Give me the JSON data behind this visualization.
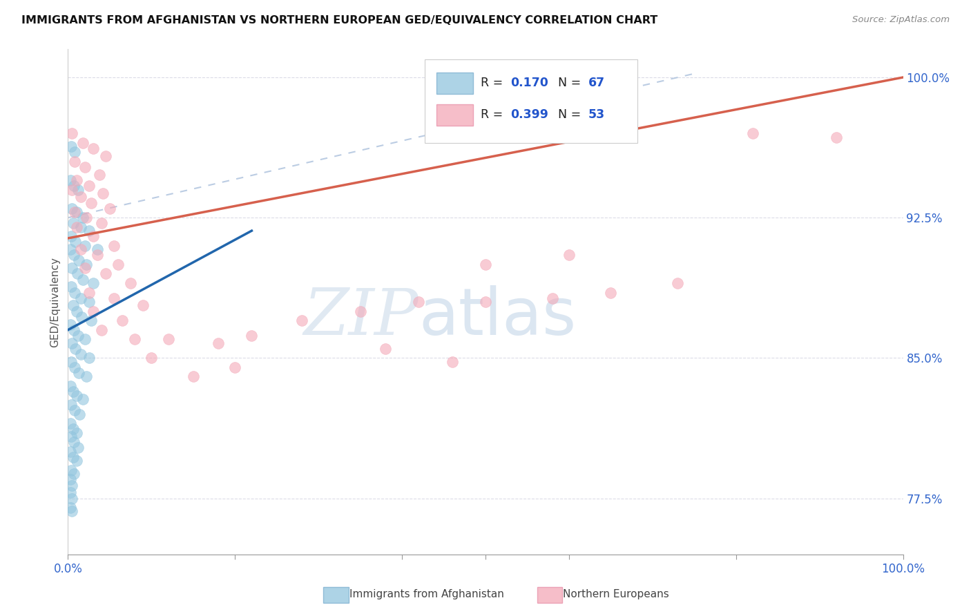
{
  "title": "IMMIGRANTS FROM AFGHANISTAN VS NORTHERN EUROPEAN GED/EQUIVALENCY CORRELATION CHART",
  "source": "Source: ZipAtlas.com",
  "ylabel": "GED/Equivalency",
  "yticks_labels": [
    "77.5%",
    "85.0%",
    "92.5%",
    "100.0%"
  ],
  "ytick_vals": [
    0.775,
    0.85,
    0.925,
    1.0
  ],
  "xlim": [
    0.0,
    1.0
  ],
  "ylim": [
    0.745,
    1.015
  ],
  "color_blue": "#92c5de",
  "color_pink": "#f4a9b8",
  "color_blue_line": "#2166ac",
  "color_pink_line": "#d6604d",
  "color_dashed": "#b0c4de",
  "watermark_zip": "ZIP",
  "watermark_atlas": "atlas",
  "legend_label_blue": "Immigrants from Afghanistan",
  "legend_label_pink": "Northern Europeans",
  "blue_line_x0": 0.0,
  "blue_line_y0": 0.865,
  "blue_line_x1": 0.22,
  "blue_line_y1": 0.918,
  "pink_line_x0": 0.0,
  "pink_line_y0": 0.914,
  "pink_line_x1": 1.0,
  "pink_line_y1": 1.0,
  "dash_line_x0": 0.0,
  "dash_line_y0": 0.925,
  "dash_line_x1": 0.75,
  "dash_line_y1": 1.002,
  "blue_pts": [
    [
      0.004,
      0.963
    ],
    [
      0.008,
      0.96
    ],
    [
      0.003,
      0.945
    ],
    [
      0.007,
      0.942
    ],
    [
      0.012,
      0.94
    ],
    [
      0.005,
      0.93
    ],
    [
      0.01,
      0.928
    ],
    [
      0.018,
      0.925
    ],
    [
      0.006,
      0.922
    ],
    [
      0.015,
      0.92
    ],
    [
      0.025,
      0.918
    ],
    [
      0.004,
      0.915
    ],
    [
      0.009,
      0.912
    ],
    [
      0.02,
      0.91
    ],
    [
      0.035,
      0.908
    ],
    [
      0.003,
      0.908
    ],
    [
      0.007,
      0.905
    ],
    [
      0.013,
      0.902
    ],
    [
      0.022,
      0.9
    ],
    [
      0.005,
      0.898
    ],
    [
      0.011,
      0.895
    ],
    [
      0.018,
      0.892
    ],
    [
      0.03,
      0.89
    ],
    [
      0.004,
      0.888
    ],
    [
      0.008,
      0.885
    ],
    [
      0.015,
      0.882
    ],
    [
      0.025,
      0.88
    ],
    [
      0.006,
      0.878
    ],
    [
      0.01,
      0.875
    ],
    [
      0.016,
      0.872
    ],
    [
      0.028,
      0.87
    ],
    [
      0.003,
      0.868
    ],
    [
      0.007,
      0.865
    ],
    [
      0.012,
      0.862
    ],
    [
      0.02,
      0.86
    ],
    [
      0.005,
      0.858
    ],
    [
      0.009,
      0.855
    ],
    [
      0.015,
      0.852
    ],
    [
      0.025,
      0.85
    ],
    [
      0.004,
      0.848
    ],
    [
      0.008,
      0.845
    ],
    [
      0.013,
      0.842
    ],
    [
      0.022,
      0.84
    ],
    [
      0.003,
      0.835
    ],
    [
      0.006,
      0.832
    ],
    [
      0.01,
      0.83
    ],
    [
      0.018,
      0.828
    ],
    [
      0.004,
      0.825
    ],
    [
      0.008,
      0.822
    ],
    [
      0.014,
      0.82
    ],
    [
      0.003,
      0.815
    ],
    [
      0.006,
      0.812
    ],
    [
      0.01,
      0.81
    ],
    [
      0.004,
      0.808
    ],
    [
      0.007,
      0.805
    ],
    [
      0.012,
      0.802
    ],
    [
      0.003,
      0.8
    ],
    [
      0.006,
      0.797
    ],
    [
      0.01,
      0.795
    ],
    [
      0.004,
      0.79
    ],
    [
      0.007,
      0.788
    ],
    [
      0.003,
      0.785
    ],
    [
      0.005,
      0.782
    ],
    [
      0.003,
      0.778
    ],
    [
      0.005,
      0.775
    ],
    [
      0.003,
      0.77
    ],
    [
      0.005,
      0.768
    ]
  ],
  "pink_pts": [
    [
      0.005,
      0.97
    ],
    [
      0.018,
      0.965
    ],
    [
      0.03,
      0.962
    ],
    [
      0.045,
      0.958
    ],
    [
      0.008,
      0.955
    ],
    [
      0.02,
      0.952
    ],
    [
      0.038,
      0.948
    ],
    [
      0.01,
      0.945
    ],
    [
      0.025,
      0.942
    ],
    [
      0.042,
      0.938
    ],
    [
      0.005,
      0.94
    ],
    [
      0.015,
      0.936
    ],
    [
      0.028,
      0.933
    ],
    [
      0.05,
      0.93
    ],
    [
      0.008,
      0.928
    ],
    [
      0.022,
      0.925
    ],
    [
      0.04,
      0.922
    ],
    [
      0.01,
      0.92
    ],
    [
      0.03,
      0.915
    ],
    [
      0.055,
      0.91
    ],
    [
      0.015,
      0.908
    ],
    [
      0.035,
      0.905
    ],
    [
      0.06,
      0.9
    ],
    [
      0.02,
      0.898
    ],
    [
      0.045,
      0.895
    ],
    [
      0.075,
      0.89
    ],
    [
      0.025,
      0.885
    ],
    [
      0.055,
      0.882
    ],
    [
      0.09,
      0.878
    ],
    [
      0.03,
      0.875
    ],
    [
      0.065,
      0.87
    ],
    [
      0.04,
      0.865
    ],
    [
      0.08,
      0.86
    ],
    [
      0.12,
      0.86
    ],
    [
      0.18,
      0.858
    ],
    [
      0.22,
      0.862
    ],
    [
      0.28,
      0.87
    ],
    [
      0.35,
      0.875
    ],
    [
      0.42,
      0.88
    ],
    [
      0.5,
      0.88
    ],
    [
      0.58,
      0.882
    ],
    [
      0.65,
      0.885
    ],
    [
      0.73,
      0.89
    ],
    [
      0.82,
      0.97
    ],
    [
      0.92,
      0.968
    ],
    [
      0.5,
      0.9
    ],
    [
      0.6,
      0.905
    ],
    [
      0.38,
      0.855
    ],
    [
      0.46,
      0.848
    ],
    [
      0.15,
      0.84
    ],
    [
      0.2,
      0.845
    ],
    [
      0.1,
      0.85
    ]
  ]
}
